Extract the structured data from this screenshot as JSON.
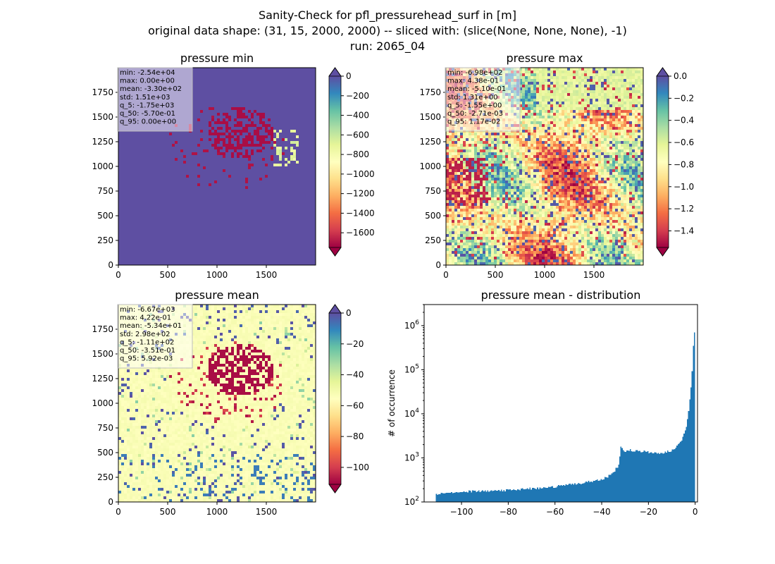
{
  "figure": {
    "title_lines": [
      "Sanity-Check for pfl_pressurehead_surf in [m]",
      "original data shape: (31, 15, 2000, 2000) -- sliced with: (slice(None, None, None), -1)",
      "run: 2065_04"
    ]
  },
  "chart_data": [
    {
      "type": "heatmap",
      "title": "pressure min",
      "colormap": "Spectral",
      "xticks": [
        0,
        500,
        1000,
        1500
      ],
      "yticks": [
        0,
        250,
        500,
        750,
        1000,
        1250,
        1500,
        1750
      ],
      "xlim": [
        0,
        2000
      ],
      "ylim": [
        0,
        2000
      ],
      "colorbar": {
        "ticks": [
          0,
          -200,
          -400,
          -600,
          -800,
          -1000,
          -1200,
          -1400,
          -1600
        ],
        "range": [
          -1750,
          0
        ],
        "extend": "both"
      },
      "stats": [
        "min: -2.54e+04",
        "max: 0.00e+00",
        "mean: -3.30e+02",
        "std: 1.51e+03",
        "q_5: -1.75e+03",
        "q_50: -5.70e-01",
        "q_95: 0.00e+00"
      ]
    },
    {
      "type": "heatmap",
      "title": "pressure max",
      "colormap": "Spectral",
      "xticks": [
        0,
        500,
        1000,
        1500
      ],
      "yticks": [
        0,
        250,
        500,
        750,
        1000,
        1250,
        1500,
        1750
      ],
      "xlim": [
        0,
        2000
      ],
      "ylim": [
        0,
        2000
      ],
      "colorbar": {
        "ticks": [
          "0.0",
          "-0.2",
          "-0.4",
          "-0.6",
          "-0.8",
          "-1.0",
          "-1.2",
          "-1.4"
        ],
        "range": [
          -1.55,
          0.0
        ],
        "extend": "both"
      },
      "stats": [
        "min: -6.98e+02",
        "max: 4.38e-01",
        "mean: -5.10e-01",
        "std: 1.31e+00",
        "q_5: -1.55e+00",
        "q_50: -2.71e-03",
        "q_95: 1.17e-02"
      ]
    },
    {
      "type": "heatmap",
      "title": "pressure mean",
      "colormap": "Spectral",
      "xticks": [
        0,
        500,
        1000,
        1500
      ],
      "yticks": [
        0,
        250,
        500,
        750,
        1000,
        1250,
        1500,
        1750
      ],
      "xlim": [
        0,
        2000
      ],
      "ylim": [
        0,
        2000
      ],
      "colorbar": {
        "ticks": [
          0,
          -20,
          -40,
          -60,
          -80,
          -100
        ],
        "range": [
          -111,
          0
        ],
        "extend": "both"
      },
      "stats": [
        "min: -6.67e+03",
        "max: 4.22e-01",
        "mean: -5.34e+01",
        "std: 2.98e+02",
        "q_5: -1.11e+02",
        "q_50: -3.51e-01",
        "q_95: 5.92e-03"
      ]
    },
    {
      "type": "bar",
      "title": "pressure mean - distribution",
      "xlabel": "",
      "ylabel": "# of occurrence",
      "yscale": "log",
      "color": "#1f77b4",
      "xlim": [
        -116,
        1
      ],
      "ylim": [
        100,
        3000000
      ],
      "xticks": [
        -100,
        -80,
        -60,
        -40,
        -20,
        0
      ],
      "yticks": [
        100,
        1000,
        10000,
        100000,
        1000000
      ],
      "yticklabels": [
        "10^2",
        "10^3",
        "10^4",
        "10^5",
        "10^6"
      ],
      "bins": {
        "x": [
          -111,
          -104,
          -96,
          -88,
          -80,
          -72,
          -64,
          -56,
          -48,
          -40,
          -36,
          -33,
          -32,
          -30,
          -28,
          -26,
          -24,
          -22,
          -20,
          -18,
          -16,
          -14,
          -12,
          -10,
          -8,
          -6,
          -4,
          -3,
          -2,
          -1.5,
          -1,
          -0.5,
          0
        ],
        "counts": [
          150,
          165,
          175,
          180,
          185,
          200,
          210,
          240,
          270,
          330,
          420,
          700,
          1700,
          1400,
          1500,
          1450,
          1400,
          1400,
          1350,
          1300,
          1250,
          1300,
          1400,
          1500,
          1800,
          2600,
          5000,
          12000,
          40000,
          90000,
          350000,
          700000,
          1900000
        ]
      }
    }
  ]
}
